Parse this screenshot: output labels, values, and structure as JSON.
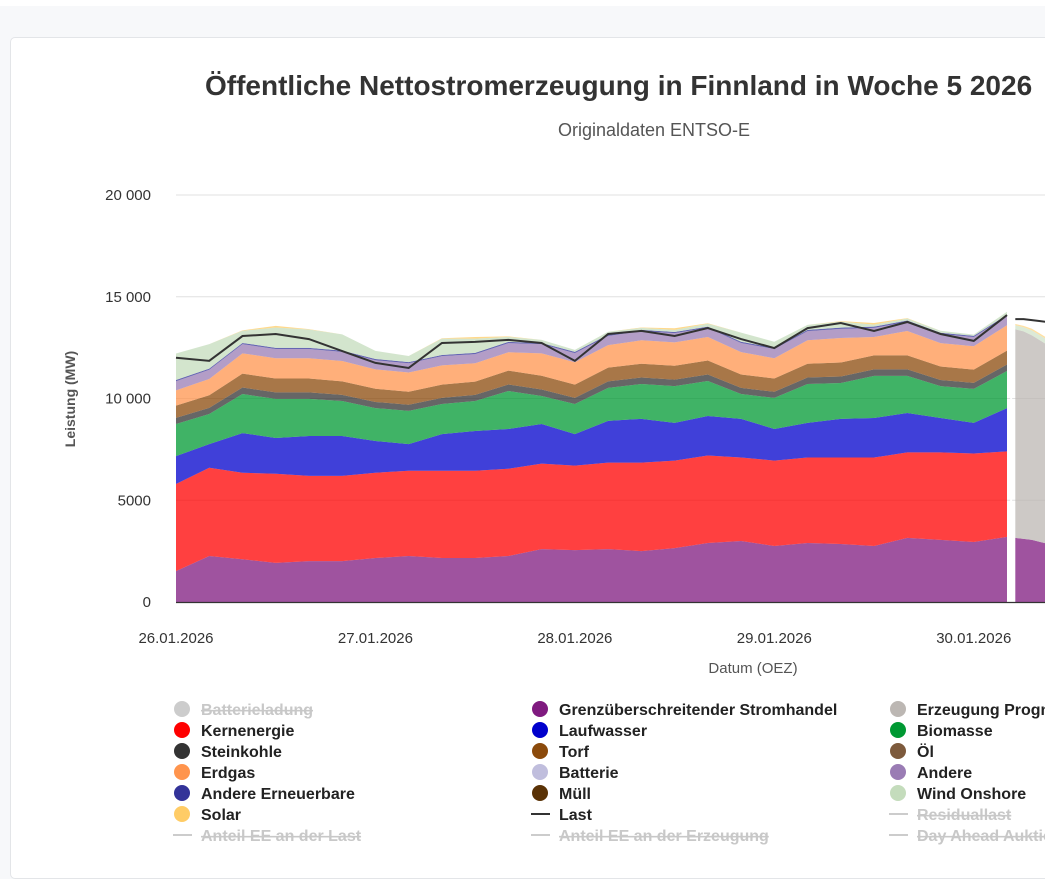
{
  "chart_data": {
    "type": "area",
    "stacked": true,
    "title": "Öffentliche Nettostromerzeugung in Finnland in Woche 5 2026",
    "subtitle": "Originaldaten ENTSO-E",
    "xlabel": "Datum (OEZ)",
    "ylabel": "Leistung (MW)",
    "ylim": [
      0,
      20000
    ],
    "grid": true,
    "yticks": [
      {
        "value": 0,
        "label": "0"
      },
      {
        "value": 5000,
        "label": "5000"
      },
      {
        "value": 10000,
        "label": "10 000"
      },
      {
        "value": 15000,
        "label": "15 000"
      },
      {
        "value": 20000,
        "label": "20 000"
      }
    ],
    "xticks": [
      {
        "value": "26.01.2026 00:00",
        "label": "26.01.2026"
      },
      {
        "value": "27.01.2026 00:00",
        "label": "27.01.2026"
      },
      {
        "value": "28.01.2026 00:00",
        "label": "28.01.2026"
      },
      {
        "value": "29.01.2026 00:00",
        "label": "29.01.2026"
      },
      {
        "value": "30.01.2026 00:00",
        "label": "30.01.2026"
      }
    ],
    "x": [
      "26.01.2026 00:00",
      "26.01.2026 04:00",
      "26.01.2026 08:00",
      "26.01.2026 12:00",
      "26.01.2026 16:00",
      "26.01.2026 20:00",
      "27.01.2026 00:00",
      "27.01.2026 04:00",
      "27.01.2026 08:00",
      "27.01.2026 12:00",
      "27.01.2026 16:00",
      "27.01.2026 20:00",
      "28.01.2026 00:00",
      "28.01.2026 04:00",
      "28.01.2026 08:00",
      "28.01.2026 12:00",
      "28.01.2026 16:00",
      "28.01.2026 20:00",
      "29.01.2026 00:00",
      "29.01.2026 04:00",
      "29.01.2026 08:00",
      "29.01.2026 12:00",
      "29.01.2026 16:00",
      "29.01.2026 20:00",
      "30.01.2026 00:00",
      "30.01.2026 04:00"
    ],
    "series": [
      {
        "name": "Grenzüberschreitender Stromhandel",
        "color": "#7f1a7f",
        "values": [
          1520,
          2260,
          2100,
          1920,
          2010,
          2010,
          2160,
          2260,
          2160,
          2160,
          2260,
          2600,
          2550,
          2600,
          2500,
          2650,
          2900,
          3000,
          2750,
          2900,
          2850,
          2750,
          3150,
          3050,
          2950,
          3200
        ]
      },
      {
        "name": "Kernenergie",
        "color": "#ff0000",
        "values": [
          4280,
          4340,
          4250,
          4380,
          4190,
          4190,
          4190,
          4190,
          4290,
          4290,
          4290,
          4200,
          4150,
          4250,
          4350,
          4300,
          4300,
          4100,
          4200,
          4200,
          4250,
          4350,
          4200,
          4300,
          4350,
          4200
        ]
      },
      {
        "name": "Laufwasser",
        "color": "#0000cc",
        "values": [
          1370,
          1160,
          1950,
          1760,
          1960,
          1960,
          1560,
          1310,
          1800,
          1950,
          1950,
          1950,
          1550,
          2050,
          2150,
          1850,
          1940,
          1900,
          1550,
          1700,
          1900,
          1940,
          1940,
          1690,
          1500,
          2130
        ]
      },
      {
        "name": "Biomasse",
        "color": "#009933",
        "values": [
          1580,
          1480,
          1920,
          1920,
          1820,
          1720,
          1620,
          1630,
          1480,
          1480,
          1870,
          1370,
          1480,
          1620,
          1710,
          1810,
          1720,
          1220,
          1530,
          1910,
          1760,
          2070,
          1820,
          1570,
          1670,
          1820
        ]
      },
      {
        "name": "Steinkohle",
        "color": "#333333",
        "values": [
          300,
          300,
          320,
          320,
          320,
          300,
          300,
          300,
          300,
          300,
          320,
          320,
          300,
          320,
          320,
          320,
          320,
          300,
          300,
          320,
          320,
          320,
          320,
          300,
          300,
          320
        ]
      },
      {
        "name": "Torf",
        "color": "#8b4a0b",
        "values": [
          600,
          620,
          680,
          680,
          680,
          660,
          650,
          640,
          650,
          650,
          680,
          680,
          650,
          680,
          680,
          680,
          690,
          660,
          650,
          680,
          690,
          690,
          690,
          660,
          650,
          680
        ]
      },
      {
        "name": "Erdgas",
        "color": "#ff944d",
        "values": [
          750,
          800,
          1000,
          1000,
          1000,
          1000,
          950,
          950,
          950,
          900,
          900,
          1100,
          1100,
          1100,
          1150,
          1150,
          1150,
          1100,
          1000,
          1150,
          1200,
          900,
          1200,
          1150,
          1150,
          1250
        ]
      },
      {
        "name": "Andere",
        "color": "#9a7cb4",
        "values": [
          450,
          450,
          450,
          450,
          450,
          450,
          450,
          450,
          450,
          450,
          450,
          450,
          450,
          450,
          450,
          450,
          450,
          450,
          450,
          450,
          450,
          450,
          450,
          450,
          450,
          450
        ]
      },
      {
        "name": "Andere Erneuerbare",
        "color": "#333399",
        "values": [
          60,
          60,
          60,
          60,
          60,
          60,
          60,
          60,
          60,
          60,
          60,
          60,
          60,
          60,
          60,
          60,
          60,
          60,
          60,
          60,
          60,
          60,
          60,
          60,
          60,
          60
        ]
      },
      {
        "name": "Wind Onshore",
        "color": "#c4dcbc",
        "values": [
          1300,
          1200,
          600,
          1000,
          900,
          800,
          400,
          300,
          800,
          700,
          250,
          150,
          100,
          150,
          100,
          100,
          150,
          450,
          300,
          250,
          300,
          100,
          100,
          100,
          60,
          150
        ]
      },
      {
        "name": "Solar",
        "color": "#ffcc66",
        "values": [
          0,
          0,
          20,
          80,
          20,
          0,
          0,
          0,
          20,
          80,
          20,
          0,
          0,
          0,
          20,
          80,
          20,
          0,
          0,
          0,
          20,
          80,
          20,
          0,
          0,
          0
        ]
      }
    ],
    "last": {
      "name": "Last",
      "color": "#333333",
      "values": [
        12000,
        11850,
        13070,
        13170,
        12920,
        12330,
        11750,
        11500,
        12730,
        12780,
        12880,
        12730,
        11850,
        13170,
        13320,
        13070,
        13460,
        12920,
        12480,
        13460,
        13710,
        13320,
        13760,
        13170,
        12830,
        14100
      ]
    },
    "forecast": {
      "x": [
        "30.01.2026 05:00",
        "30.01.2026 06:00",
        "30.01.2026 07:00",
        "30.01.2026 08:00",
        "30.01.2026 09:00"
      ],
      "grenz_values": [
        3150,
        3100,
        3050,
        2950,
        2850
      ],
      "prognose": {
        "name": "Erzeugung Prognose",
        "color": "#bcb7b3",
        "values": [
          10250,
          10200,
          10050,
          9900,
          9750
        ]
      },
      "wind_values": [
        200,
        200,
        250,
        250,
        250
      ],
      "solar_values": [
        60,
        70,
        80,
        80,
        80
      ],
      "last_values": [
        13900,
        13900,
        13850,
        13800,
        13750
      ]
    },
    "legend_placement": "bottom",
    "legend": [
      {
        "name": "Batterieladung",
        "color": "#cccccc",
        "marker": "dot",
        "enabled": false
      },
      {
        "name": "Grenzüberschreitender Stromhandel",
        "color": "#7f1a7f",
        "marker": "dot",
        "enabled": true
      },
      {
        "name": "Erzeugung Prognose",
        "color": "#bcb7b3",
        "marker": "dot",
        "enabled": true
      },
      {
        "name": "Kernenergie",
        "color": "#ff0000",
        "marker": "dot",
        "enabled": true
      },
      {
        "name": "Laufwasser",
        "color": "#0000cc",
        "marker": "dot",
        "enabled": true
      },
      {
        "name": "Biomasse",
        "color": "#009933",
        "marker": "dot",
        "enabled": true
      },
      {
        "name": "Steinkohle",
        "color": "#333333",
        "marker": "dot",
        "enabled": true
      },
      {
        "name": "Torf",
        "color": "#8b4a0b",
        "marker": "dot",
        "enabled": true
      },
      {
        "name": "Öl",
        "color": "#7d5a3c",
        "marker": "dot",
        "enabled": true
      },
      {
        "name": "Erdgas",
        "color": "#ff944d",
        "marker": "dot",
        "enabled": true
      },
      {
        "name": "Batterie",
        "color": "#c0bedd",
        "marker": "dot",
        "enabled": true
      },
      {
        "name": "Andere",
        "color": "#9a7cb4",
        "marker": "dot",
        "enabled": true
      },
      {
        "name": "Andere Erneuerbare",
        "color": "#333399",
        "marker": "dot",
        "enabled": true
      },
      {
        "name": "Müll",
        "color": "#5a3206",
        "marker": "dot",
        "enabled": true
      },
      {
        "name": "Wind Onshore",
        "color": "#c4dcbc",
        "marker": "dot",
        "enabled": true
      },
      {
        "name": "Solar",
        "color": "#ffcc66",
        "marker": "dot",
        "enabled": true
      },
      {
        "name": "Last",
        "color": "#333333",
        "marker": "line",
        "enabled": true
      },
      {
        "name": "Residuallast",
        "color": "#cccccc",
        "marker": "line",
        "enabled": false
      },
      {
        "name": "Anteil EE an der Last",
        "color": "#cccccc",
        "marker": "line",
        "enabled": false
      },
      {
        "name": "Anteil EE an der Erzeugung",
        "color": "#cccccc",
        "marker": "line",
        "enabled": false
      },
      {
        "name": "Day Ahead Auktion",
        "color": "#cccccc",
        "marker": "line",
        "enabled": false
      }
    ]
  }
}
